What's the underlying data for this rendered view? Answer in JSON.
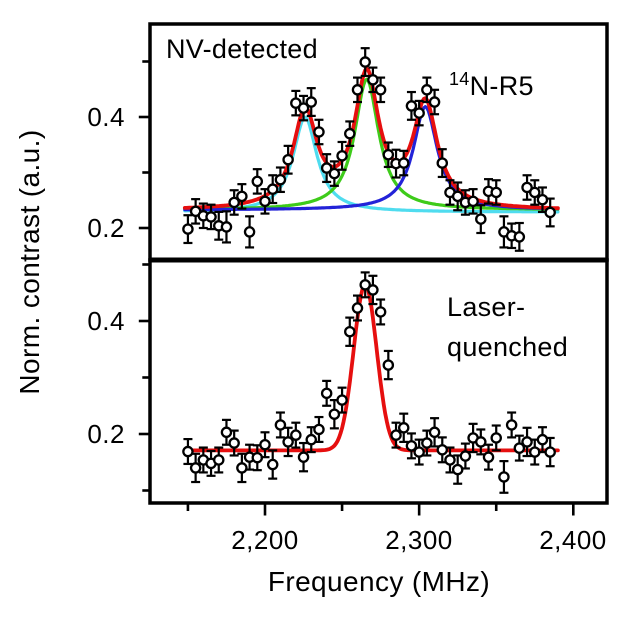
{
  "figure": {
    "x_axis_label": "Frequency (MHz)",
    "y_axis_label": "Norm. contrast (a.u.)",
    "background": "#ffffff",
    "text_color": "#000000"
  },
  "x_axis": {
    "range": [
      2125,
      2422
    ],
    "major_ticks": [
      {
        "value": 2200,
        "label": "2,200"
      },
      {
        "value": 2300,
        "label": "2,300"
      },
      {
        "value": 2400,
        "label": "2,400"
      }
    ],
    "minor_ticks": [
      2150,
      2250,
      2350
    ]
  },
  "chart_data": [
    {
      "type": "scatter",
      "panel": "top",
      "annotation": "NV-detected",
      "annotation_isotope": {
        "sup": "14",
        "main": "N-R5"
      },
      "xlim": [
        2125,
        2422
      ],
      "ylim": [
        0.14,
        0.568
      ],
      "yticks": [
        {
          "value": 0.5,
          "label": ""
        },
        {
          "value": 0.4,
          "label": "0.4"
        },
        {
          "value": 0.3,
          "label": ""
        },
        {
          "value": 0.2,
          "label": "0.2"
        }
      ],
      "marker": {
        "shape": "open-circle",
        "color": "#000000"
      },
      "x": [
        2150,
        2155,
        2160,
        2165,
        2170,
        2175,
        2180,
        2185,
        2190,
        2195,
        2200,
        2205,
        2210,
        2215,
        2220,
        2225,
        2230,
        2235,
        2240,
        2245,
        2250,
        2255,
        2260,
        2265,
        2270,
        2275,
        2280,
        2285,
        2290,
        2295,
        2300,
        2305,
        2310,
        2315,
        2320,
        2325,
        2330,
        2335,
        2340,
        2345,
        2350,
        2355,
        2360,
        2365,
        2370,
        2375,
        2380,
        2385
      ],
      "y": [
        0.198,
        0.23,
        0.222,
        0.22,
        0.204,
        0.202,
        0.246,
        0.257,
        0.193,
        0.284,
        0.248,
        0.27,
        0.287,
        0.323,
        0.425,
        0.416,
        0.427,
        0.373,
        0.308,
        0.298,
        0.33,
        0.37,
        0.449,
        0.499,
        0.467,
        0.449,
        0.332,
        0.316,
        0.317,
        0.42,
        0.407,
        0.449,
        0.427,
        0.317,
        0.264,
        0.257,
        0.246,
        0.248,
        0.216,
        0.266,
        0.264,
        0.193,
        0.186,
        0.184,
        0.273,
        0.264,
        0.251,
        0.228
      ],
      "yerr": [
        0.025,
        0.022,
        0.022,
        0.022,
        0.025,
        0.028,
        0.022,
        0.022,
        0.028,
        0.022,
        0.022,
        0.025,
        0.022,
        0.025,
        0.022,
        0.022,
        0.025,
        0.022,
        0.025,
        0.022,
        0.025,
        0.022,
        0.022,
        0.025,
        0.022,
        0.022,
        0.022,
        0.025,
        0.022,
        0.025,
        0.022,
        0.022,
        0.022,
        0.025,
        0.022,
        0.025,
        0.022,
        0.022,
        0.025,
        0.022,
        0.022,
        0.028,
        0.022,
        0.025,
        0.022,
        0.022,
        0.022,
        0.025
      ],
      "fit": {
        "model": "lorentzian",
        "baseline": 0.2315,
        "curve_color": "#e60f0f",
        "range": [
          2148,
          2390
        ],
        "draw_components": true,
        "components": [
          {
            "name": "line-1",
            "center": 2226,
            "amplitude": 0.171,
            "width": 9.5,
            "color": "#4fdcef",
            "baseline": 0.2285
          },
          {
            "name": "line-2",
            "center": 2266,
            "amplitude": 0.2355,
            "width": 9.5,
            "color": "#3ecb1a",
            "baseline": 0.2325
          },
          {
            "name": "line-3",
            "center": 2304,
            "amplitude": 0.186,
            "width": 9.5,
            "color": "#2323d8",
            "baseline": 0.2325
          }
        ]
      }
    },
    {
      "type": "scatter",
      "panel": "bottom",
      "annotation": {
        "line1": "Laser-",
        "line2": "quenched"
      },
      "xlim": [
        2125,
        2422
      ],
      "ylim": [
        0.078,
        0.503
      ],
      "yticks": [
        {
          "value": 0.5,
          "label": ""
        },
        {
          "value": 0.4,
          "label": "0.4"
        },
        {
          "value": 0.3,
          "label": ""
        },
        {
          "value": 0.2,
          "label": "0.2"
        },
        {
          "value": 0.1,
          "label": ""
        }
      ],
      "marker": {
        "shape": "open-circle",
        "color": "#000000"
      },
      "x": [
        2150,
        2155,
        2160,
        2165,
        2170,
        2175,
        2180,
        2185,
        2190,
        2195,
        2200,
        2205,
        2210,
        2215,
        2220,
        2225,
        2230,
        2235,
        2240,
        2245,
        2250,
        2255,
        2260,
        2265,
        2270,
        2275,
        2280,
        2285,
        2290,
        2295,
        2300,
        2305,
        2310,
        2315,
        2320,
        2325,
        2330,
        2335,
        2340,
        2345,
        2350,
        2355,
        2360,
        2365,
        2370,
        2375,
        2380,
        2385
      ],
      "y": [
        0.169,
        0.14,
        0.154,
        0.148,
        0.154,
        0.203,
        0.184,
        0.14,
        0.159,
        0.158,
        0.181,
        0.146,
        0.216,
        0.186,
        0.198,
        0.159,
        0.19,
        0.208,
        0.272,
        0.235,
        0.26,
        0.381,
        0.423,
        0.464,
        0.455,
        0.416,
        0.322,
        0.198,
        0.211,
        0.179,
        0.168,
        0.184,
        0.203,
        0.172,
        0.154,
        0.137,
        0.161,
        0.193,
        0.186,
        0.159,
        0.193,
        0.124,
        0.216,
        0.175,
        0.186,
        0.168,
        0.19,
        0.168
      ],
      "yerr": [
        0.022,
        0.025,
        0.022,
        0.022,
        0.022,
        0.022,
        0.022,
        0.025,
        0.022,
        0.022,
        0.022,
        0.025,
        0.022,
        0.025,
        0.022,
        0.025,
        0.022,
        0.022,
        0.022,
        0.025,
        0.022,
        0.025,
        0.022,
        0.022,
        0.025,
        0.022,
        0.025,
        0.022,
        0.025,
        0.022,
        0.022,
        0.022,
        0.025,
        0.022,
        0.022,
        0.025,
        0.022,
        0.025,
        0.022,
        0.022,
        0.022,
        0.028,
        0.022,
        0.022,
        0.025,
        0.022,
        0.022,
        0.025
      ],
      "fit": {
        "model": "gaussian",
        "baseline": 0.171,
        "curve_color": "#e60f0f",
        "range": [
          2148,
          2390
        ],
        "draw_components": false,
        "components": [
          {
            "name": "line",
            "center": 2265,
            "amplitude": 0.293,
            "width": 7.5,
            "color": "#e60f0f",
            "baseline": 0.171
          }
        ]
      }
    }
  ]
}
